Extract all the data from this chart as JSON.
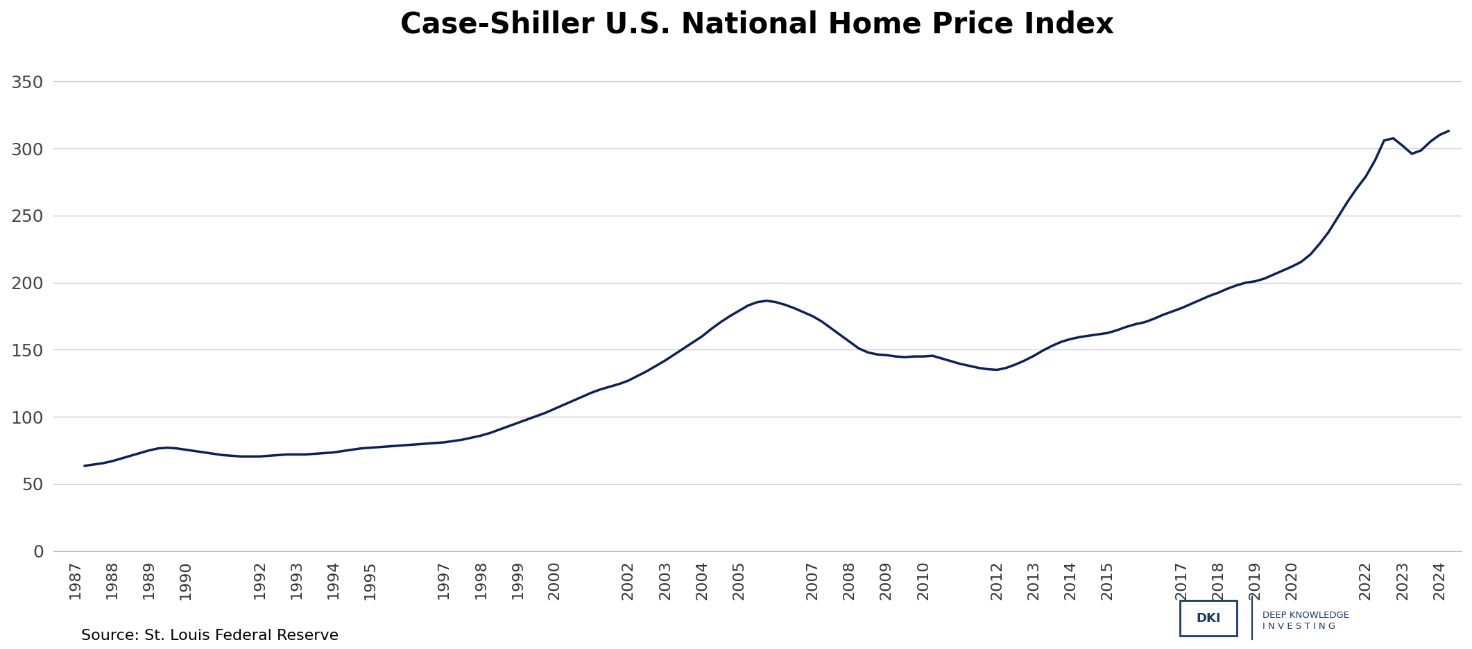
{
  "title": "Case-Shiller U.S. National Home Price Index",
  "source_text": "Source: St. Louis Federal Reserve",
  "line_color": "#0d1f5c",
  "background_color": "#ffffff",
  "plot_bg_color": "#ffffff",
  "grid_color": "#cccccc",
  "title_fontsize": 30,
  "source_fontsize": 16,
  "ylim": [
    0,
    370
  ],
  "yticks": [
    0,
    50,
    100,
    150,
    200,
    250,
    300,
    350
  ],
  "x_tick_positions": [
    1987,
    1988,
    1989,
    1990,
    1992,
    1993,
    1994,
    1995,
    1997,
    1998,
    1999,
    2000,
    2002,
    2003,
    2004,
    2005,
    2007,
    2008,
    2009,
    2010,
    2012,
    2013,
    2014,
    2015,
    2017,
    2018,
    2019,
    2020,
    2022,
    2023,
    2024
  ],
  "xlim": [
    1986.4,
    2024.6
  ],
  "data": [
    [
      1987.25,
      63.5
    ],
    [
      1987.5,
      64.5
    ],
    [
      1987.75,
      65.5
    ],
    [
      1988.0,
      67.0
    ],
    [
      1988.25,
      69.0
    ],
    [
      1988.5,
      71.0
    ],
    [
      1988.75,
      73.0
    ],
    [
      1989.0,
      75.0
    ],
    [
      1989.25,
      76.5
    ],
    [
      1989.5,
      77.0
    ],
    [
      1989.75,
      76.5
    ],
    [
      1990.0,
      75.5
    ],
    [
      1990.25,
      74.5
    ],
    [
      1990.5,
      73.5
    ],
    [
      1990.75,
      72.5
    ],
    [
      1991.0,
      71.5
    ],
    [
      1991.25,
      71.0
    ],
    [
      1991.5,
      70.5
    ],
    [
      1991.75,
      70.5
    ],
    [
      1992.0,
      70.5
    ],
    [
      1992.25,
      71.0
    ],
    [
      1992.5,
      71.5
    ],
    [
      1992.75,
      72.0
    ],
    [
      1993.0,
      72.0
    ],
    [
      1993.25,
      72.0
    ],
    [
      1993.5,
      72.5
    ],
    [
      1993.75,
      73.0
    ],
    [
      1994.0,
      73.5
    ],
    [
      1994.25,
      74.5
    ],
    [
      1994.5,
      75.5
    ],
    [
      1994.75,
      76.5
    ],
    [
      1995.0,
      77.0
    ],
    [
      1995.25,
      77.5
    ],
    [
      1995.5,
      78.0
    ],
    [
      1995.75,
      78.5
    ],
    [
      1996.0,
      79.0
    ],
    [
      1996.25,
      79.5
    ],
    [
      1996.5,
      80.0
    ],
    [
      1996.75,
      80.5
    ],
    [
      1997.0,
      81.0
    ],
    [
      1997.25,
      82.0
    ],
    [
      1997.5,
      83.0
    ],
    [
      1997.75,
      84.5
    ],
    [
      1998.0,
      86.0
    ],
    [
      1998.25,
      88.0
    ],
    [
      1998.5,
      90.5
    ],
    [
      1998.75,
      93.0
    ],
    [
      1999.0,
      95.5
    ],
    [
      1999.25,
      98.0
    ],
    [
      1999.5,
      100.5
    ],
    [
      1999.75,
      103.0
    ],
    [
      2000.0,
      106.0
    ],
    [
      2000.25,
      109.0
    ],
    [
      2000.5,
      112.0
    ],
    [
      2000.75,
      115.0
    ],
    [
      2001.0,
      118.0
    ],
    [
      2001.25,
      120.5
    ],
    [
      2001.5,
      122.5
    ],
    [
      2001.75,
      124.5
    ],
    [
      2002.0,
      127.0
    ],
    [
      2002.25,
      130.5
    ],
    [
      2002.5,
      134.0
    ],
    [
      2002.75,
      138.0
    ],
    [
      2003.0,
      142.0
    ],
    [
      2003.25,
      146.5
    ],
    [
      2003.5,
      151.0
    ],
    [
      2003.75,
      155.5
    ],
    [
      2004.0,
      160.0
    ],
    [
      2004.25,
      165.5
    ],
    [
      2004.5,
      170.5
    ],
    [
      2004.75,
      175.0
    ],
    [
      2005.0,
      179.0
    ],
    [
      2005.25,
      183.0
    ],
    [
      2005.5,
      185.5
    ],
    [
      2005.75,
      186.5
    ],
    [
      2006.0,
      185.5
    ],
    [
      2006.25,
      183.5
    ],
    [
      2006.5,
      181.0
    ],
    [
      2006.75,
      178.0
    ],
    [
      2007.0,
      175.0
    ],
    [
      2007.25,
      171.0
    ],
    [
      2007.5,
      166.0
    ],
    [
      2007.75,
      161.0
    ],
    [
      2008.0,
      156.0
    ],
    [
      2008.25,
      151.0
    ],
    [
      2008.5,
      148.0
    ],
    [
      2008.75,
      146.5
    ],
    [
      2009.0,
      146.0
    ],
    [
      2009.25,
      145.0
    ],
    [
      2009.5,
      144.5
    ],
    [
      2009.75,
      145.0
    ],
    [
      2010.0,
      145.0
    ],
    [
      2010.25,
      145.5
    ],
    [
      2010.5,
      143.5
    ],
    [
      2010.75,
      141.5
    ],
    [
      2011.0,
      139.5
    ],
    [
      2011.25,
      138.0
    ],
    [
      2011.5,
      136.5
    ],
    [
      2011.75,
      135.5
    ],
    [
      2012.0,
      135.0
    ],
    [
      2012.25,
      136.5
    ],
    [
      2012.5,
      139.0
    ],
    [
      2012.75,
      142.0
    ],
    [
      2013.0,
      145.5
    ],
    [
      2013.25,
      149.5
    ],
    [
      2013.5,
      153.0
    ],
    [
      2013.75,
      156.0
    ],
    [
      2014.0,
      158.0
    ],
    [
      2014.25,
      159.5
    ],
    [
      2014.5,
      160.5
    ],
    [
      2014.75,
      161.5
    ],
    [
      2015.0,
      162.5
    ],
    [
      2015.25,
      164.5
    ],
    [
      2015.5,
      167.0
    ],
    [
      2015.75,
      169.0
    ],
    [
      2016.0,
      170.5
    ],
    [
      2016.25,
      173.0
    ],
    [
      2016.5,
      176.0
    ],
    [
      2016.75,
      178.5
    ],
    [
      2017.0,
      181.0
    ],
    [
      2017.25,
      184.0
    ],
    [
      2017.5,
      187.0
    ],
    [
      2017.75,
      190.0
    ],
    [
      2018.0,
      192.5
    ],
    [
      2018.25,
      195.5
    ],
    [
      2018.5,
      198.0
    ],
    [
      2018.75,
      200.0
    ],
    [
      2019.0,
      201.0
    ],
    [
      2019.25,
      203.0
    ],
    [
      2019.5,
      206.0
    ],
    [
      2019.75,
      209.0
    ],
    [
      2020.0,
      212.0
    ],
    [
      2020.25,
      215.5
    ],
    [
      2020.5,
      221.0
    ],
    [
      2020.75,
      229.0
    ],
    [
      2021.0,
      238.0
    ],
    [
      2021.25,
      249.0
    ],
    [
      2021.5,
      260.0
    ],
    [
      2021.75,
      270.0
    ],
    [
      2022.0,
      279.0
    ],
    [
      2022.25,
      291.0
    ],
    [
      2022.5,
      306.0
    ],
    [
      2022.75,
      307.5
    ],
    [
      2023.0,
      302.0
    ],
    [
      2023.25,
      296.0
    ],
    [
      2023.5,
      298.5
    ],
    [
      2023.75,
      305.0
    ],
    [
      2024.0,
      310.0
    ],
    [
      2024.25,
      313.0
    ]
  ],
  "dki_color": "#1a3a6b",
  "logo_text1": "DKI",
  "logo_text2": "DEEP KNOWLEDGE\nI N V E S T I N G"
}
